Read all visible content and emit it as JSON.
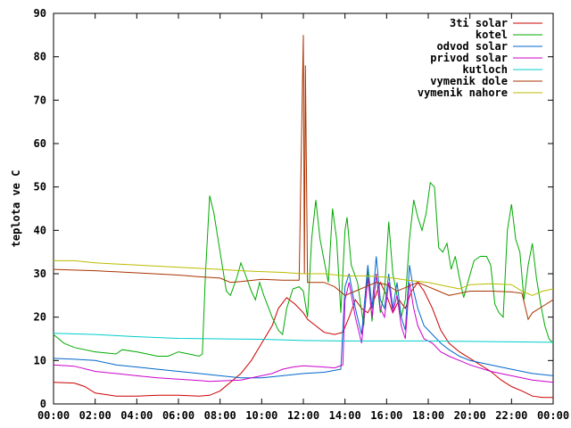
{
  "chart_data": {
    "type": "line",
    "ylabel": "teplota ve C",
    "ylim": [
      0,
      90
    ],
    "yticks": [
      0,
      10,
      20,
      30,
      40,
      50,
      60,
      70,
      80,
      90
    ],
    "xlim": [
      0,
      24
    ],
    "xticks": [
      "00:00",
      "02:00",
      "04:00",
      "06:00",
      "08:00",
      "10:00",
      "12:00",
      "14:00",
      "16:00",
      "18:00",
      "20:00",
      "22:00",
      "00:00"
    ],
    "grid": false,
    "legend_position": "top-right",
    "series": [
      {
        "name": "3ti solar",
        "color": "#cc0000",
        "points": [
          [
            0,
            5
          ],
          [
            1,
            4.8
          ],
          [
            1.5,
            4
          ],
          [
            2,
            2.5
          ],
          [
            3,
            1.8
          ],
          [
            4,
            1.8
          ],
          [
            5,
            2
          ],
          [
            6,
            2
          ],
          [
            7,
            1.8
          ],
          [
            7.5,
            2
          ],
          [
            8,
            3
          ],
          [
            8.5,
            5
          ],
          [
            9,
            7
          ],
          [
            9.5,
            10
          ],
          [
            10,
            14
          ],
          [
            10.5,
            18
          ],
          [
            10.8,
            22
          ],
          [
            11.2,
            24.5
          ],
          [
            11.6,
            23
          ],
          [
            12,
            21
          ],
          [
            12.2,
            19.5
          ],
          [
            12.6,
            18
          ],
          [
            13,
            16.5
          ],
          [
            13.5,
            16
          ],
          [
            13.9,
            16.5
          ],
          [
            14.2,
            20
          ],
          [
            14.5,
            24
          ],
          [
            14.8,
            22
          ],
          [
            15.1,
            21
          ],
          [
            15.4,
            24
          ],
          [
            15.7,
            28
          ],
          [
            16,
            25
          ],
          [
            16.3,
            21
          ],
          [
            16.6,
            24
          ],
          [
            16.9,
            22
          ],
          [
            17.2,
            26
          ],
          [
            17.5,
            28
          ],
          [
            17.8,
            26
          ],
          [
            18.2,
            22
          ],
          [
            18.6,
            17
          ],
          [
            19,
            14
          ],
          [
            19.5,
            12
          ],
          [
            20,
            10.5
          ],
          [
            20.5,
            9
          ],
          [
            21,
            7.5
          ],
          [
            21.5,
            5.5
          ],
          [
            22,
            4
          ],
          [
            22.5,
            3
          ],
          [
            23,
            1.8
          ],
          [
            23.5,
            1.5
          ],
          [
            24,
            1.5
          ]
        ]
      },
      {
        "name": "kotel",
        "color": "#00aa00",
        "points": [
          [
            0,
            16
          ],
          [
            0.5,
            14
          ],
          [
            1,
            13
          ],
          [
            2,
            12
          ],
          [
            3,
            11.5
          ],
          [
            3.3,
            12.5
          ],
          [
            4,
            12
          ],
          [
            4.5,
            11.5
          ],
          [
            5,
            11
          ],
          [
            5.5,
            11
          ],
          [
            6,
            12
          ],
          [
            6.5,
            11.5
          ],
          [
            7,
            11
          ],
          [
            7.15,
            11.5
          ],
          [
            7.3,
            30
          ],
          [
            7.5,
            48
          ],
          [
            7.7,
            44
          ],
          [
            8,
            35
          ],
          [
            8.3,
            26
          ],
          [
            8.5,
            25
          ],
          [
            8.8,
            29
          ],
          [
            9,
            32.5
          ],
          [
            9.2,
            30
          ],
          [
            9.5,
            26
          ],
          [
            9.7,
            24
          ],
          [
            9.9,
            28
          ],
          [
            10.1,
            25
          ],
          [
            10.5,
            20
          ],
          [
            10.8,
            17
          ],
          [
            11,
            16
          ],
          [
            11.2,
            22
          ],
          [
            11.5,
            26.5
          ],
          [
            11.8,
            27
          ],
          [
            12,
            26
          ],
          [
            12.2,
            20
          ],
          [
            12.4,
            38
          ],
          [
            12.6,
            47
          ],
          [
            12.8,
            38
          ],
          [
            13,
            33
          ],
          [
            13.2,
            28
          ],
          [
            13.4,
            45
          ],
          [
            13.6,
            38
          ],
          [
            13.8,
            21
          ],
          [
            14,
            40
          ],
          [
            14.1,
            43
          ],
          [
            14.3,
            32
          ],
          [
            14.6,
            28
          ],
          [
            14.9,
            18
          ],
          [
            15.1,
            31
          ],
          [
            15.3,
            19
          ],
          [
            15.5,
            30
          ],
          [
            15.7,
            21
          ],
          [
            15.9,
            26
          ],
          [
            16.1,
            42
          ],
          [
            16.3,
            30
          ],
          [
            16.5,
            25
          ],
          [
            16.7,
            20
          ],
          [
            16.9,
            24
          ],
          [
            17.1,
            38
          ],
          [
            17.3,
            47
          ],
          [
            17.5,
            43
          ],
          [
            17.7,
            40
          ],
          [
            17.9,
            44
          ],
          [
            18.1,
            51
          ],
          [
            18.3,
            50
          ],
          [
            18.5,
            36
          ],
          [
            18.7,
            35
          ],
          [
            18.9,
            37
          ],
          [
            19.1,
            31
          ],
          [
            19.3,
            34
          ],
          [
            19.5,
            29
          ],
          [
            19.7,
            24.5
          ],
          [
            19.9,
            28
          ],
          [
            20.2,
            33
          ],
          [
            20.5,
            34
          ],
          [
            20.8,
            34
          ],
          [
            21,
            32
          ],
          [
            21.2,
            23
          ],
          [
            21.4,
            21
          ],
          [
            21.6,
            20
          ],
          [
            21.8,
            40
          ],
          [
            22,
            46
          ],
          [
            22.2,
            38
          ],
          [
            22.4,
            35
          ],
          [
            22.6,
            24
          ],
          [
            22.8,
            32
          ],
          [
            23,
            37
          ],
          [
            23.2,
            29
          ],
          [
            23.4,
            23
          ],
          [
            23.6,
            18
          ],
          [
            23.8,
            15
          ],
          [
            24,
            14
          ]
        ]
      },
      {
        "name": "odvod solar",
        "color": "#0066cc",
        "points": [
          [
            0,
            10.5
          ],
          [
            1,
            10.3
          ],
          [
            2,
            10
          ],
          [
            3,
            9
          ],
          [
            4,
            8.5
          ],
          [
            5,
            8
          ],
          [
            6,
            7.5
          ],
          [
            7,
            7
          ],
          [
            8,
            6.5
          ],
          [
            9,
            6
          ],
          [
            10,
            6
          ],
          [
            11,
            6.5
          ],
          [
            12,
            7
          ],
          [
            13,
            7.3
          ],
          [
            13.8,
            8
          ],
          [
            14,
            27
          ],
          [
            14.2,
            30
          ],
          [
            14.5,
            22
          ],
          [
            14.8,
            16
          ],
          [
            15.1,
            32
          ],
          [
            15.3,
            22
          ],
          [
            15.5,
            34
          ],
          [
            15.7,
            24
          ],
          [
            15.9,
            22
          ],
          [
            16.1,
            30
          ],
          [
            16.3,
            22
          ],
          [
            16.5,
            28
          ],
          [
            16.7,
            20
          ],
          [
            16.9,
            17
          ],
          [
            17.1,
            32
          ],
          [
            17.3,
            26
          ],
          [
            17.5,
            22
          ],
          [
            17.8,
            18
          ],
          [
            18.2,
            16
          ],
          [
            18.6,
            14
          ],
          [
            19,
            12.5
          ],
          [
            19.5,
            11
          ],
          [
            20,
            10
          ],
          [
            21,
            9
          ],
          [
            22,
            8
          ],
          [
            23,
            7
          ],
          [
            24,
            6.5
          ]
        ]
      },
      {
        "name": "privod solar",
        "color": "#cc00cc",
        "points": [
          [
            0,
            9
          ],
          [
            1,
            8.7
          ],
          [
            2,
            7.5
          ],
          [
            3,
            7
          ],
          [
            4,
            6.5
          ],
          [
            5,
            6
          ],
          [
            6,
            5.7
          ],
          [
            7,
            5.4
          ],
          [
            7.5,
            5.2
          ],
          [
            8,
            5.3
          ],
          [
            9,
            5.5
          ],
          [
            10,
            6.5
          ],
          [
            10.5,
            7
          ],
          [
            11,
            8
          ],
          [
            11.5,
            8.5
          ],
          [
            12,
            8.8
          ],
          [
            13,
            8.5
          ],
          [
            13.5,
            8.3
          ],
          [
            13.9,
            9
          ],
          [
            14,
            24
          ],
          [
            14.2,
            28
          ],
          [
            14.5,
            20
          ],
          [
            14.8,
            14
          ],
          [
            15.1,
            29
          ],
          [
            15.3,
            20
          ],
          [
            15.5,
            30
          ],
          [
            15.7,
            22
          ],
          [
            15.9,
            20
          ],
          [
            16.1,
            28
          ],
          [
            16.3,
            21
          ],
          [
            16.5,
            25
          ],
          [
            16.7,
            18
          ],
          [
            16.9,
            15
          ],
          [
            17.1,
            28
          ],
          [
            17.3,
            22
          ],
          [
            17.5,
            18
          ],
          [
            17.8,
            15
          ],
          [
            18.2,
            14
          ],
          [
            18.6,
            12
          ],
          [
            19,
            11
          ],
          [
            19.5,
            10
          ],
          [
            20,
            9
          ],
          [
            21,
            7.5
          ],
          [
            22,
            6.5
          ],
          [
            23,
            5.5
          ],
          [
            24,
            5
          ]
        ]
      },
      {
        "name": "kutloch",
        "color": "#00cccc",
        "points": [
          [
            0,
            16.3
          ],
          [
            2,
            16
          ],
          [
            4,
            15.5
          ],
          [
            6,
            15.1
          ],
          [
            8,
            15
          ],
          [
            10,
            14.9
          ],
          [
            12,
            14.6
          ],
          [
            14,
            14.5
          ],
          [
            16,
            14.5
          ],
          [
            18,
            14.5
          ],
          [
            20,
            14.4
          ],
          [
            22,
            14.3
          ],
          [
            24,
            14.2
          ]
        ]
      },
      {
        "name": "vymenik dole",
        "color": "#aa3300",
        "points": [
          [
            0,
            31
          ],
          [
            2,
            30.7
          ],
          [
            4,
            30.2
          ],
          [
            6,
            29.7
          ],
          [
            7,
            29.3
          ],
          [
            8,
            29
          ],
          [
            8.5,
            28
          ],
          [
            9,
            28.2
          ],
          [
            10,
            28.7
          ],
          [
            11,
            28.5
          ],
          [
            11.8,
            28.5
          ],
          [
            11.9,
            58
          ],
          [
            12,
            85
          ],
          [
            12.05,
            30
          ],
          [
            12.1,
            78
          ],
          [
            12.2,
            28
          ],
          [
            12.5,
            28
          ],
          [
            13,
            28
          ],
          [
            13.5,
            27
          ],
          [
            14,
            25
          ],
          [
            14.5,
            26
          ],
          [
            15,
            27
          ],
          [
            15.5,
            28
          ],
          [
            16,
            27.5
          ],
          [
            16.5,
            26
          ],
          [
            17,
            27
          ],
          [
            17.5,
            28
          ],
          [
            18,
            27
          ],
          [
            18.5,
            26
          ],
          [
            19,
            25
          ],
          [
            20,
            26
          ],
          [
            21,
            26
          ],
          [
            22,
            25.8
          ],
          [
            22.5,
            25.5
          ],
          [
            22.8,
            19.5
          ],
          [
            23,
            21
          ],
          [
            23.5,
            22.5
          ],
          [
            24,
            24
          ]
        ]
      },
      {
        "name": "vymenik nahore",
        "color": "#bbbb00",
        "points": [
          [
            0,
            33
          ],
          [
            1,
            33
          ],
          [
            2,
            32.5
          ],
          [
            4,
            32
          ],
          [
            6,
            31.5
          ],
          [
            8,
            31
          ],
          [
            9,
            30.7
          ],
          [
            10,
            30.5
          ],
          [
            11,
            30.3
          ],
          [
            12,
            30
          ],
          [
            13,
            30
          ],
          [
            14,
            29.5
          ],
          [
            15,
            29.5
          ],
          [
            16,
            29.2
          ],
          [
            17,
            28.5
          ],
          [
            18,
            28
          ],
          [
            19,
            27
          ],
          [
            19.5,
            26.5
          ],
          [
            20,
            27.5
          ],
          [
            21,
            27.7
          ],
          [
            22,
            27.5
          ],
          [
            22.5,
            26
          ],
          [
            23,
            25
          ],
          [
            23.5,
            26
          ],
          [
            24,
            26.5
          ]
        ]
      }
    ]
  }
}
